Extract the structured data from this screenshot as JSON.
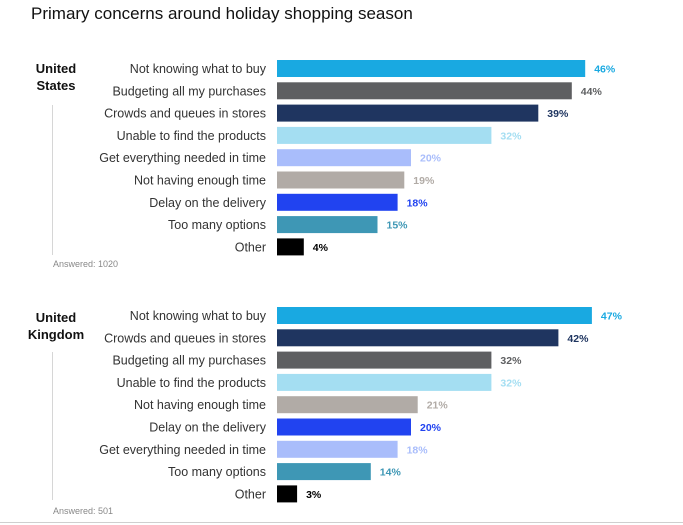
{
  "title": "Primary concerns around holiday shopping season",
  "chart_data": [
    {
      "type": "bar",
      "orientation": "horizontal",
      "group": "United States",
      "group_lines": [
        "United",
        "States"
      ],
      "answered": "Answered: 1020",
      "categories": [
        "Not knowing what to buy",
        "Budgeting all my purchases",
        "Crowds and queues in stores",
        "Unable to find the products",
        "Get everything needed in time",
        "Not having enough time",
        "Delay on the delivery",
        "Too many options",
        "Other"
      ],
      "values": [
        46,
        44,
        39,
        32,
        20,
        19,
        18,
        15,
        4
      ],
      "labels": [
        "46%",
        "44%",
        "39%",
        "32%",
        "20%",
        "19%",
        "18%",
        "15%",
        "4%"
      ],
      "colors": [
        "#19a9e1",
        "#5e5f61",
        "#1f3560",
        "#a4def2",
        "#a9bdfb",
        "#b1aba6",
        "#2143f0",
        "#3e97b5",
        "#000000"
      ],
      "label_colors": [
        "#19a9e1",
        "#5e5f61",
        "#1f3560",
        "#a4def2",
        "#a9bdfb",
        "#b1aba6",
        "#2143f0",
        "#3e97b5",
        "#000000"
      ],
      "xlim": [
        0,
        100
      ]
    },
    {
      "type": "bar",
      "orientation": "horizontal",
      "group": "United Kingdom",
      "group_lines": [
        "United",
        "Kingdom"
      ],
      "answered": "Answered: 501",
      "categories": [
        "Not knowing what to buy",
        "Crowds and queues in stores",
        "Budgeting all my purchases",
        "Unable to find the products",
        "Not having enough time",
        "Delay on the delivery",
        "Get everything needed in time",
        "Too many options",
        "Other"
      ],
      "values": [
        47,
        42,
        32,
        32,
        21,
        20,
        18,
        14,
        3
      ],
      "labels": [
        "47%",
        "42%",
        "32%",
        "32%",
        "21%",
        "20%",
        "18%",
        "14%",
        "3%"
      ],
      "colors": [
        "#19a9e1",
        "#1f3560",
        "#5e5f61",
        "#a4def2",
        "#b1aba6",
        "#2143f0",
        "#a9bdfb",
        "#3e97b5",
        "#000000"
      ],
      "label_colors": [
        "#19a9e1",
        "#1f3560",
        "#5e5f61",
        "#a4def2",
        "#b1aba6",
        "#2143f0",
        "#a9bdfb",
        "#3e97b5",
        "#000000"
      ],
      "xlim": [
        0,
        100
      ]
    }
  ]
}
